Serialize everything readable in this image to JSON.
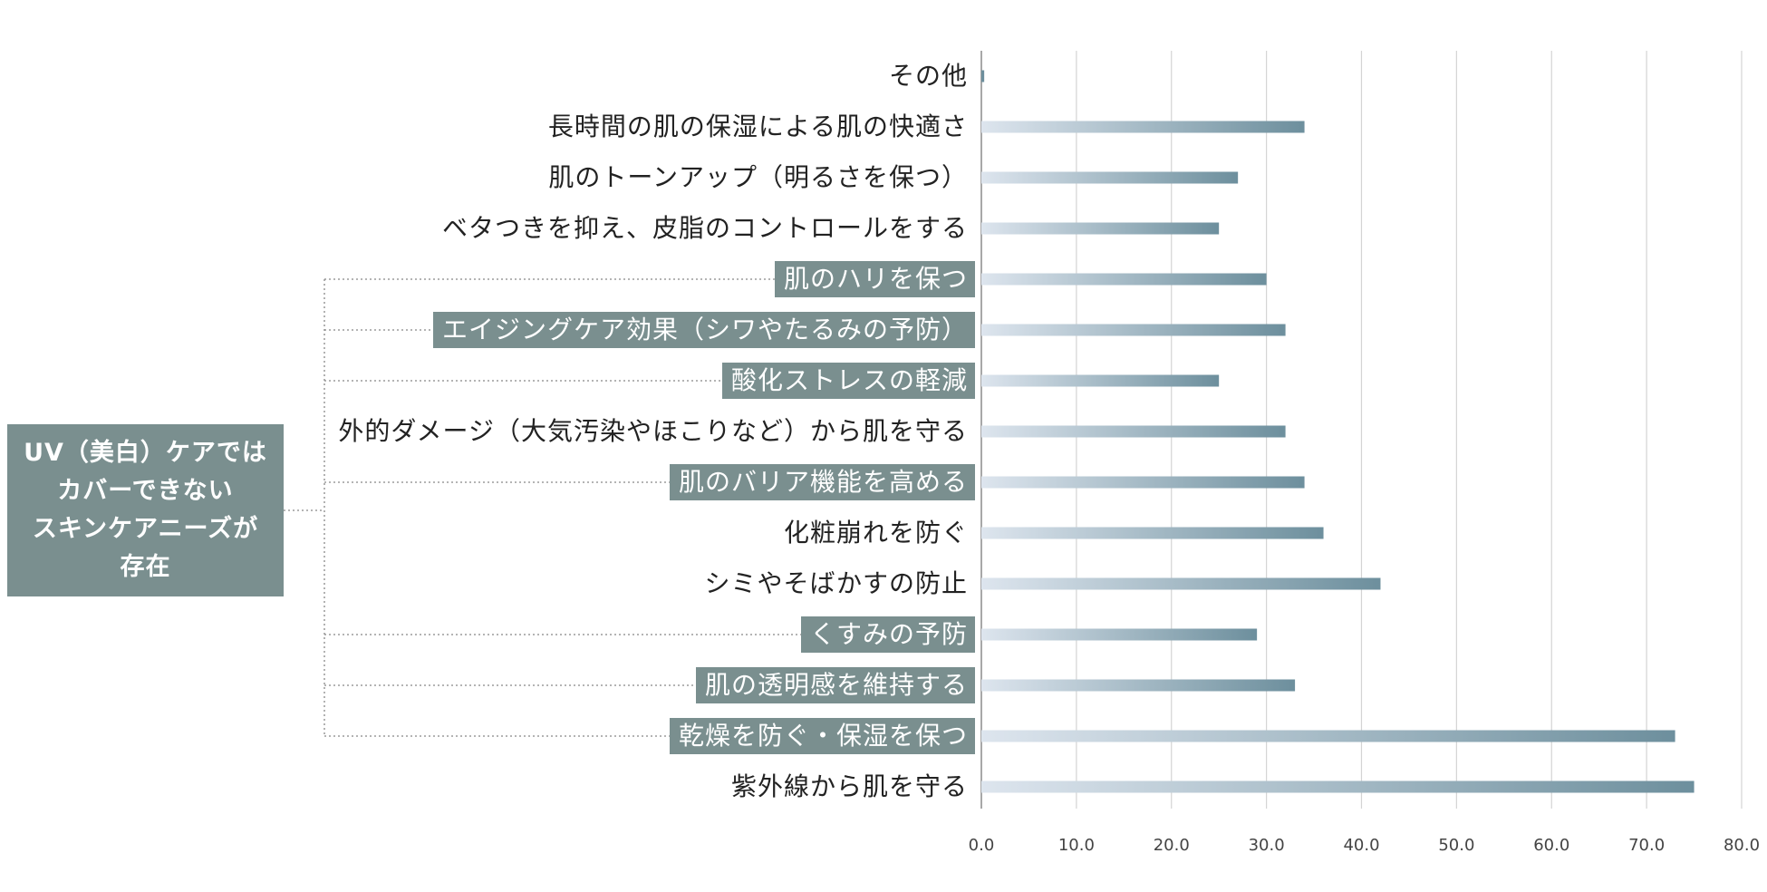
{
  "colors": {
    "highlight_box": "#7a8f8f",
    "bar_start": "#dde5ee",
    "bar_end": "#6d8f9d",
    "gridline": "#d4d4d4",
    "connector": "#888888"
  },
  "callout": {
    "text": "UV（美白）ケアでは\nカバーできない\nスキンケアニーズが\n存在"
  },
  "chart_data": {
    "type": "bar",
    "orientation": "horizontal",
    "title": "",
    "xlabel": "",
    "ylabel": "",
    "xlim": [
      0,
      80
    ],
    "x_ticks": [
      "0.0",
      "10.0",
      "20.0",
      "30.0",
      "40.0",
      "50.0",
      "60.0",
      "70.0",
      "80.0"
    ],
    "grid": true,
    "categories": [
      "その他",
      "長時間の肌の保湿による肌の快適さ",
      "肌のトーンアップ（明るさを保つ）",
      "ベタつきを抑え、皮脂のコントロールをする",
      "肌のハリを保つ",
      "エイジングケア効果（シワやたるみの予防）",
      "酸化ストレスの軽減",
      "外的ダメージ（大気汚染やほこりなど）から肌を守る",
      "肌のバリア機能を高める",
      "化粧崩れを防ぐ",
      "シミやそばかすの防止",
      "くすみの予防",
      "肌の透明感を維持する",
      "乾燥を防ぐ・保湿を保つ",
      "紫外線から肌を守る"
    ],
    "values": [
      0.3,
      34,
      27,
      25,
      30,
      32,
      25,
      32,
      34,
      36,
      42,
      29,
      33,
      73,
      75
    ],
    "highlighted": [
      false,
      false,
      false,
      false,
      true,
      true,
      true,
      false,
      true,
      false,
      false,
      true,
      true,
      true,
      false
    ]
  }
}
